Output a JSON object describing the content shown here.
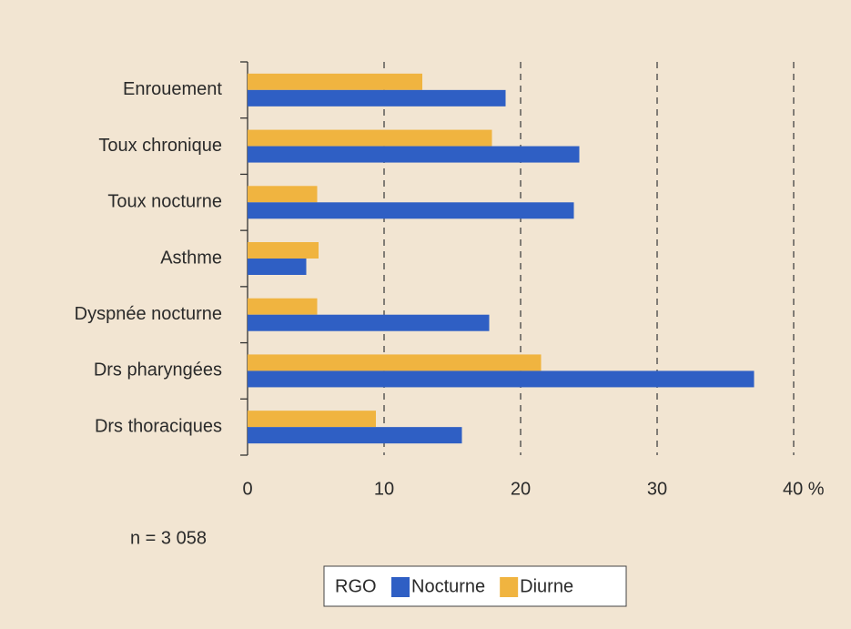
{
  "chart_data": {
    "type": "bar",
    "orientation": "horizontal",
    "categories": [
      "Enrouement",
      "Toux chronique",
      "Toux nocturne",
      "Asthme",
      "Dyspnée nocturne",
      "Drs pharyngées",
      "Drs thoraciques"
    ],
    "series": [
      {
        "name": "Nocturne",
        "color": "#2f5fc4",
        "values": [
          18.9,
          24.3,
          23.9,
          4.3,
          17.7,
          37.1,
          15.7
        ]
      },
      {
        "name": "Diurne",
        "color": "#f0b440",
        "values": [
          12.8,
          17.9,
          5.1,
          5.2,
          5.1,
          21.5,
          9.4
        ]
      }
    ],
    "legend_title": "RGO",
    "annotation": "n = 3 058",
    "xlim": [
      0,
      40
    ],
    "xticks": [
      0,
      10,
      20,
      30,
      {
        "value": 40,
        "label": "40 %"
      }
    ],
    "grid": true
  }
}
